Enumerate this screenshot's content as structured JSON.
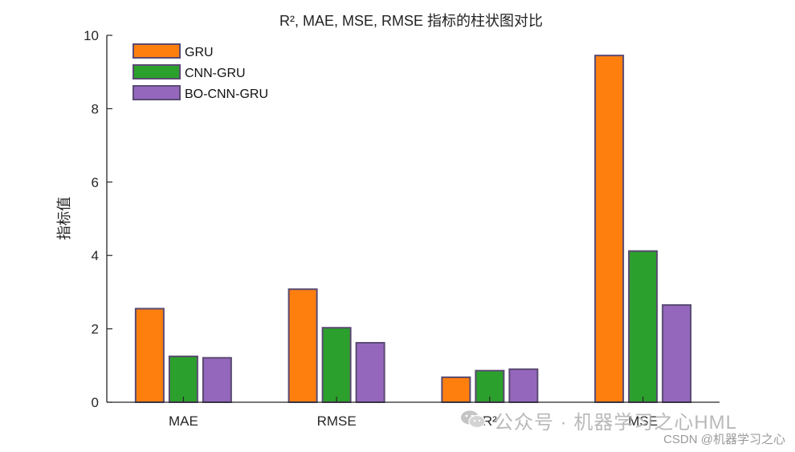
{
  "chart_data": {
    "type": "bar",
    "title": "R², MAE, MSE, RMSE 指标的柱状图对比",
    "xlabel": "",
    "ylabel": "指标值",
    "categories": [
      "MAE",
      "RMSE",
      "R²",
      "MSE"
    ],
    "series": [
      {
        "name": "GRU",
        "color": "#ff7f0e",
        "values": [
          2.55,
          3.08,
          0.68,
          9.45
        ]
      },
      {
        "name": "CNN-GRU",
        "color": "#2ca02c",
        "values": [
          1.25,
          2.03,
          0.86,
          4.12
        ]
      },
      {
        "name": "BO-CNN-GRU",
        "color": "#9467bd",
        "values": [
          1.21,
          1.62,
          0.9,
          2.65
        ]
      }
    ],
    "ylim": [
      0,
      10
    ],
    "yticks": [
      0,
      2,
      4,
      6,
      8,
      10
    ],
    "grid": false,
    "legend_position": "top-left",
    "bar_edge_color": "#5a4a72"
  },
  "watermark": {
    "icon": "wechat-icon",
    "main_text": "公众号 · 机器学习之心HML",
    "csdn_text": "CSDN @机器学习之心"
  }
}
